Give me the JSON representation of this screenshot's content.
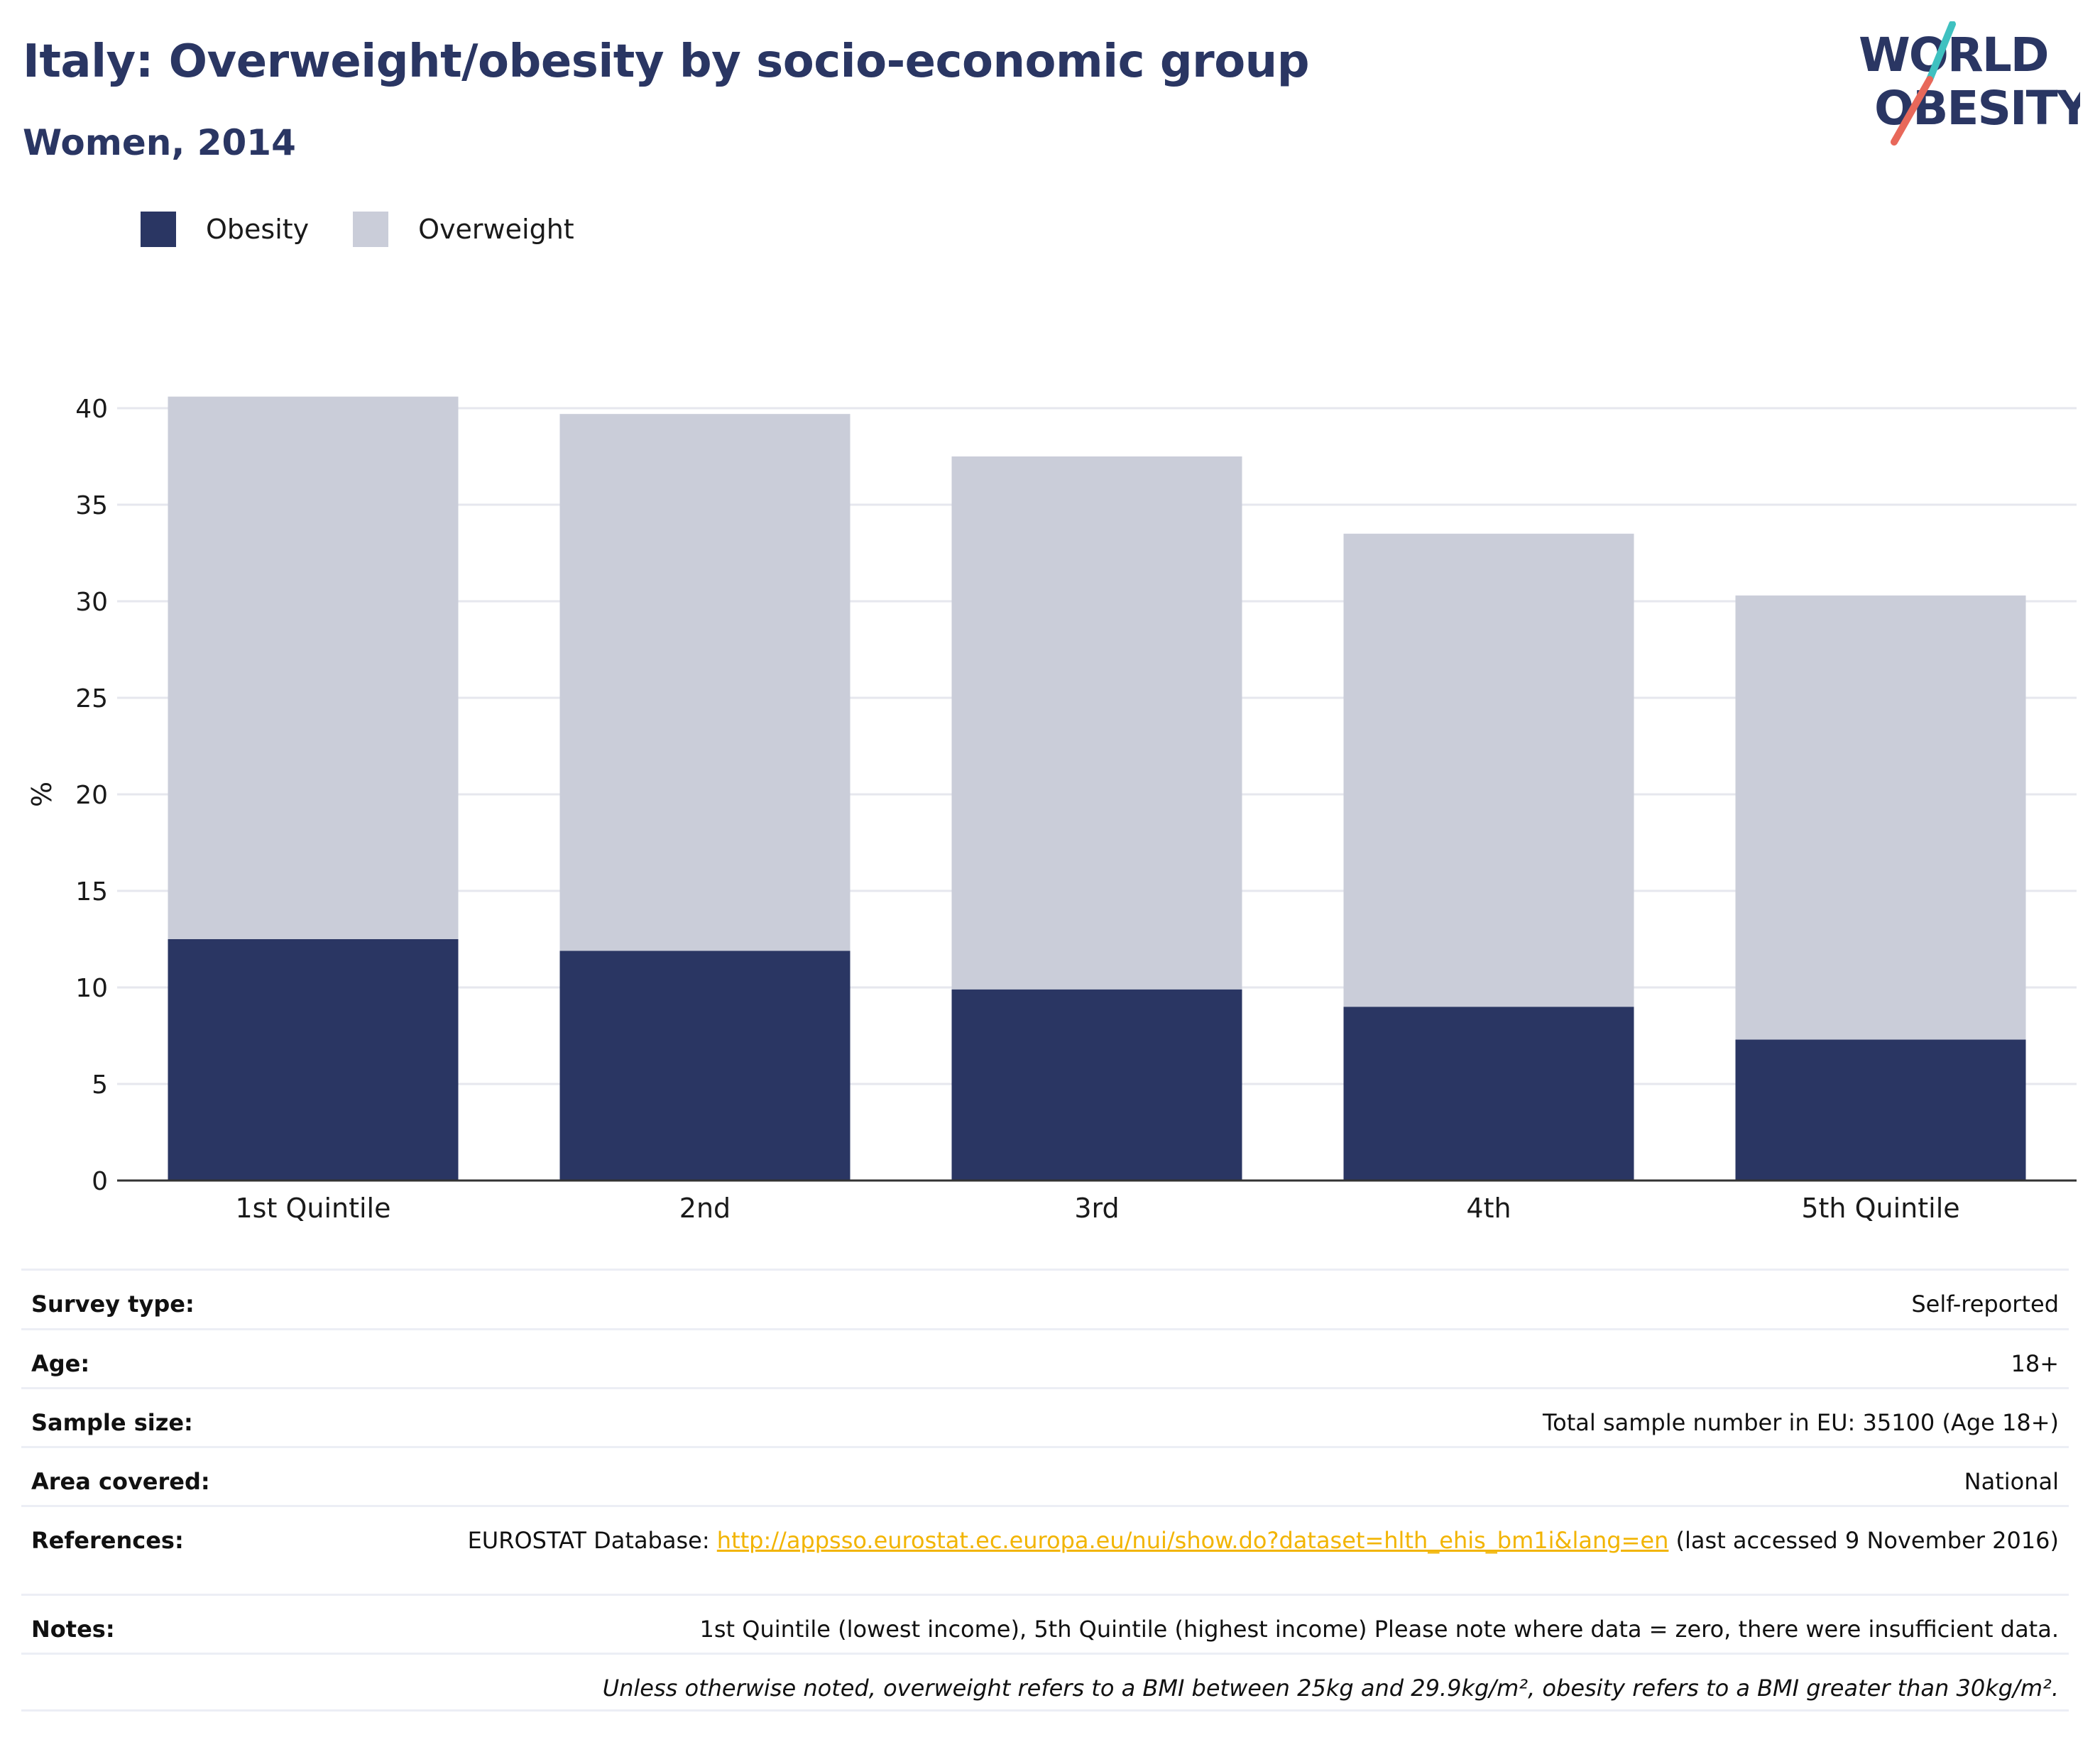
{
  "title": "Italy: Overweight/obesity by socio-economic group",
  "subtitle": "Women, 2014",
  "logo": {
    "line1": "WORLD",
    "line2": "OBESITY",
    "icon": "world-obesity-logo"
  },
  "colors": {
    "obesity": "#2a3663",
    "overweight": "#cacdd9",
    "link": "#f2b400",
    "accent_teal": "#3fc1c0",
    "accent_red": "#e8685a"
  },
  "chart_data": {
    "type": "bar",
    "stacked": true,
    "categories": [
      "1st Quintile",
      "2nd",
      "3rd",
      "4th",
      "5th Quintile"
    ],
    "series": [
      {
        "name": "Obesity",
        "values": [
          12.5,
          11.9,
          9.9,
          9.0,
          7.3
        ]
      },
      {
        "name": "Overweight",
        "values": [
          28.1,
          27.8,
          27.6,
          24.5,
          23.0
        ]
      }
    ],
    "ylabel": "%",
    "xlabel": "",
    "ylim": [
      0,
      40
    ],
    "yticks": [
      0,
      5,
      10,
      15,
      20,
      25,
      30,
      35,
      40
    ],
    "grid": true,
    "legend": "top-left"
  },
  "info": [
    {
      "label": "Survey type:",
      "value": "Self-reported"
    },
    {
      "label": "Age:",
      "value": "18+"
    },
    {
      "label": "Sample size:",
      "value": "Total sample number in EU: 35100 (Age 18+)"
    },
    {
      "label": "Area covered:",
      "value": "National"
    },
    {
      "label": "References:",
      "prefix": "EUROSTAT Database: ",
      "link": "http://appsso.eurostat.ec.europa.eu/nui/show.do?dataset=hlth_ehis_bm1i&lang=en",
      "suffix": " (last accessed 9 November 2016)"
    },
    {
      "label": "Notes:",
      "value": "1st Quintile (lowest income), 5th Quintile (highest income) Please note where data = zero, there were insufficient data."
    }
  ],
  "footnote": "Unless otherwise noted, overweight refers to a BMI between 25kg and 29.9kg/m², obesity refers to a BMI greater than 30kg/m²."
}
